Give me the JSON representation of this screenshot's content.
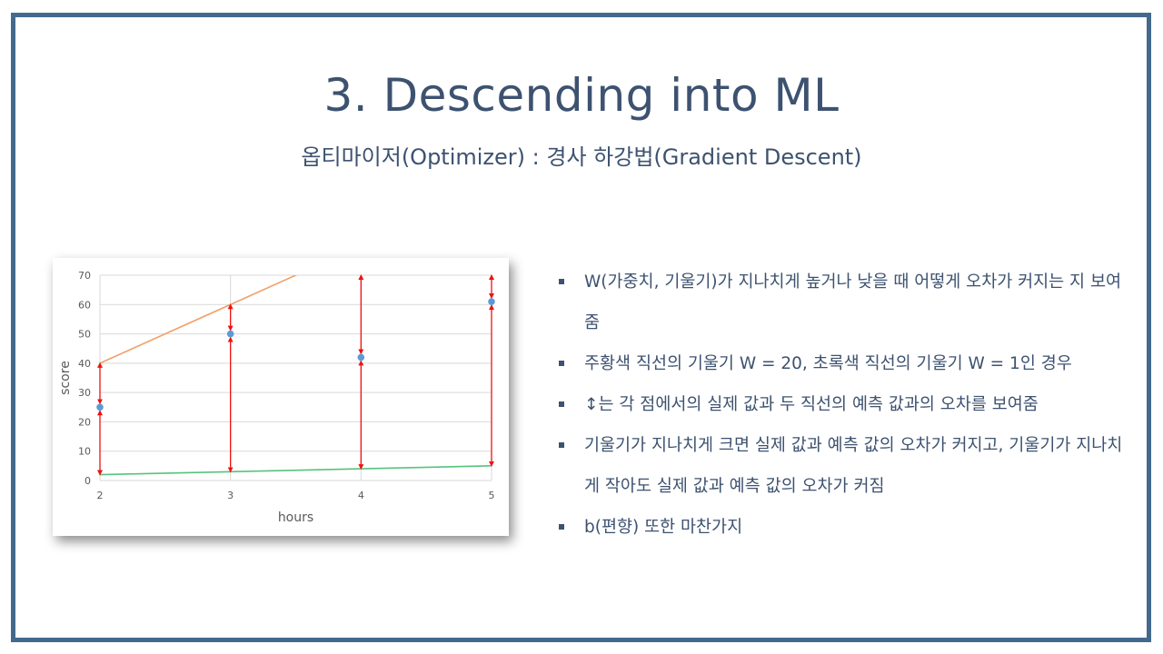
{
  "slide": {
    "title": "3. Descending into ML",
    "subtitle": "옵티마이저(Optimizer) : 경사 하강법(Gradient Descent)"
  },
  "bullets": [
    "W(가중치, 기울기)가 지나치게 높거나 낮을 때 어떻게 오차가 커지는 지 보여줌",
    "주황색 직선의 기울기 W = 20, 초록색 직선의 기울기 W = 1인 경우",
    "↕는 각 점에서의 실제 값과 두 직선의 예측 값과의 오차를 보여줌",
    "기울기가 지나치게 크면 실제 값과 예측 값의 오차가 커지고, 기울기가 지나치게 작아도 실제 값과 예측 값의 오차가 커짐",
    "b(편향) 또한 마찬가지"
  ],
  "colors": {
    "frame": "#44698e",
    "text": "#3d5270",
    "orange_line": "#f0a06a",
    "green_line": "#57c27e",
    "points": "#5b9bd5",
    "error_arrows": "#ee1111"
  },
  "chart_data": {
    "type": "scatter",
    "xlabel": "hours",
    "ylabel": "score",
    "xlim": [
      2,
      5
    ],
    "ylim": [
      0,
      70
    ],
    "x_ticks": [
      "2",
      "3",
      "4",
      "5"
    ],
    "y_ticks": [
      "0",
      "10",
      "20",
      "30",
      "40",
      "50",
      "60",
      "70"
    ],
    "grid": true,
    "points": [
      {
        "x": 2,
        "y": 25
      },
      {
        "x": 3,
        "y": 50
      },
      {
        "x": 4,
        "y": 42
      },
      {
        "x": 5,
        "y": 61
      }
    ],
    "lines": [
      {
        "slope": 20,
        "intercept": 0,
        "color": "orange"
      },
      {
        "slope": 1,
        "intercept": 0,
        "color": "green"
      }
    ],
    "error_arrows": true
  }
}
